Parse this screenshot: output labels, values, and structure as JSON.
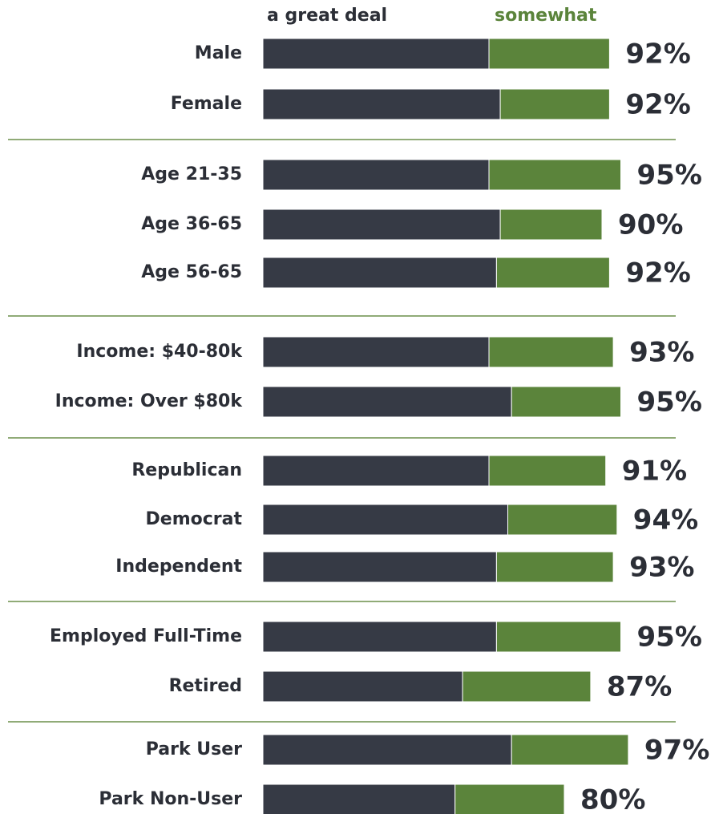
{
  "chart_data": {
    "type": "stacked-bar",
    "categories": [
      "Male",
      "Female",
      "Age  21-35",
      "Age  36-65",
      "Age  56-65",
      "Income: $40-80k",
      "Income: Over $80k",
      "Republican",
      "Democrat",
      "Independent",
      "Employed Full-Time",
      "Retired",
      "Park User",
      "Park Non-User"
    ],
    "series": [
      {
        "name": "a great deal",
        "color": "#363a45",
        "values": [
          60,
          63,
          60,
          63,
          62,
          60,
          66,
          60,
          65,
          62,
          62,
          53,
          66,
          51
        ]
      },
      {
        "name": "somewhat",
        "color": "#5b843b",
        "values": [
          32,
          29,
          35,
          27,
          30,
          33,
          29,
          31,
          29,
          31,
          33,
          34,
          31,
          29
        ]
      }
    ],
    "totals": [
      92,
      92,
      95,
      90,
      92,
      93,
      95,
      91,
      94,
      93,
      95,
      87,
      97,
      80
    ],
    "value_labels": [
      "92%",
      "92%",
      "95%",
      "90%",
      "92%",
      "93%",
      "95%",
      "91%",
      "94%",
      "93%",
      "95%",
      "87%",
      "97%",
      "80%"
    ]
  }
}
